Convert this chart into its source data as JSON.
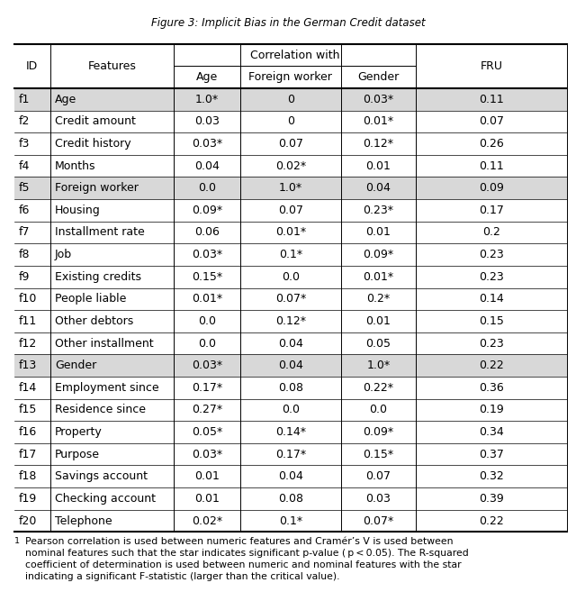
{
  "title": "Figure 3: Implicit Bias in the German Credit dataset",
  "footnote_superscript": "1",
  "footnote_text": " Pearson correlation is used between numeric features and Cramér’s V is used between\nnominal features such that the star indicates significant p-value ( p < 0.05). The R-squared\ncoefficient of determination is used between numeric and nominal features with the star\nindicating a significant F-statistic (larger than the critical value).",
  "rows": [
    [
      "f1",
      "Age",
      "1.0*",
      "0",
      "0.03*",
      "0.11"
    ],
    [
      "f2",
      "Credit amount",
      "0.03",
      "0",
      "0.01*",
      "0.07"
    ],
    [
      "f3",
      "Credit history",
      "0.03*",
      "0.07",
      "0.12*",
      "0.26"
    ],
    [
      "f4",
      "Months",
      "0.04",
      "0.02*",
      "0.01",
      "0.11"
    ],
    [
      "f5",
      "Foreign worker",
      "0.0",
      "1.0*",
      "0.04",
      "0.09"
    ],
    [
      "f6",
      "Housing",
      "0.09*",
      "0.07",
      "0.23*",
      "0.17"
    ],
    [
      "f7",
      "Installment rate",
      "0.06",
      "0.01*",
      "0.01",
      "0.2"
    ],
    [
      "f8",
      "Job",
      "0.03*",
      "0.1*",
      "0.09*",
      "0.23"
    ],
    [
      "f9",
      "Existing credits",
      "0.15*",
      "0.0",
      "0.01*",
      "0.23"
    ],
    [
      "f10",
      "People liable",
      "0.01*",
      "0.07*",
      "0.2*",
      "0.14"
    ],
    [
      "f11",
      "Other debtors",
      "0.0",
      "0.12*",
      "0.01",
      "0.15"
    ],
    [
      "f12",
      "Other installment",
      "0.0",
      "0.04",
      "0.05",
      "0.23"
    ],
    [
      "f13",
      "Gender",
      "0.03*",
      "0.04",
      "1.0*",
      "0.22"
    ],
    [
      "f14",
      "Employment since",
      "0.17*",
      "0.08",
      "0.22*",
      "0.36"
    ],
    [
      "f15",
      "Residence since",
      "0.27*",
      "0.0",
      "0.0",
      "0.19"
    ],
    [
      "f16",
      "Property",
      "0.05*",
      "0.14*",
      "0.09*",
      "0.34"
    ],
    [
      "f17",
      "Purpose",
      "0.03*",
      "0.17*",
      "0.15*",
      "0.37"
    ],
    [
      "f18",
      "Savings account",
      "0.01",
      "0.04",
      "0.07",
      "0.32"
    ],
    [
      "f19",
      "Checking account",
      "0.01",
      "0.08",
      "0.03",
      "0.39"
    ],
    [
      "f20",
      "Telephone",
      "0.02*",
      "0.1*",
      "0.07*",
      "0.22"
    ]
  ],
  "highlighted_rows": [
    0,
    4,
    12
  ],
  "bg_color": "#d8d8d8",
  "white_color": "#ffffff",
  "fig_width": 6.4,
  "fig_height": 6.77,
  "dpi": 100,
  "font_size": 9.0,
  "footnote_font_size": 7.8,
  "title_font_size": 8.5
}
